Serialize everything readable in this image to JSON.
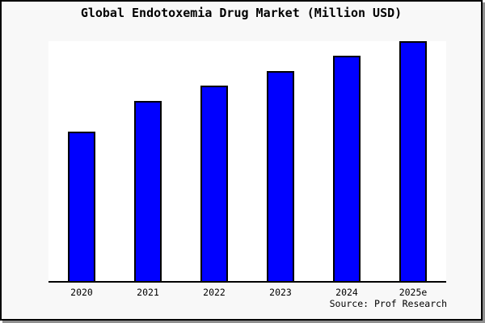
{
  "window": {
    "background_color": "#f8f8f8",
    "frame_color": "#000000",
    "shadow_color": "#8f8f8f"
  },
  "title": "Global Endotoxemia Drug Market (Million USD)",
  "source_note": "Source: Prof Research",
  "chart_data": {
    "type": "bar",
    "title": "Global Endotoxemia Drug Market (Million USD)",
    "categories": [
      "2020",
      "2021",
      "2022",
      "2023",
      "2024",
      "2025e"
    ],
    "values": [
      62.4,
      75.2,
      81.5,
      87.6,
      94.0,
      100.0
    ],
    "values_note": "y-axis has no ticks, gridlines or data labels; values are relative bar heights estimated from pixels, normalized so 2025e = 100",
    "xlabel": "",
    "ylabel": "",
    "ylim": [
      0,
      100
    ],
    "grid": false,
    "legend": "none",
    "bar_color": "#0000ff",
    "bar_border_color": "#000000",
    "plot_background": "#ffffff",
    "axis_line_color": "#000000",
    "source": "Source: Prof Research"
  }
}
